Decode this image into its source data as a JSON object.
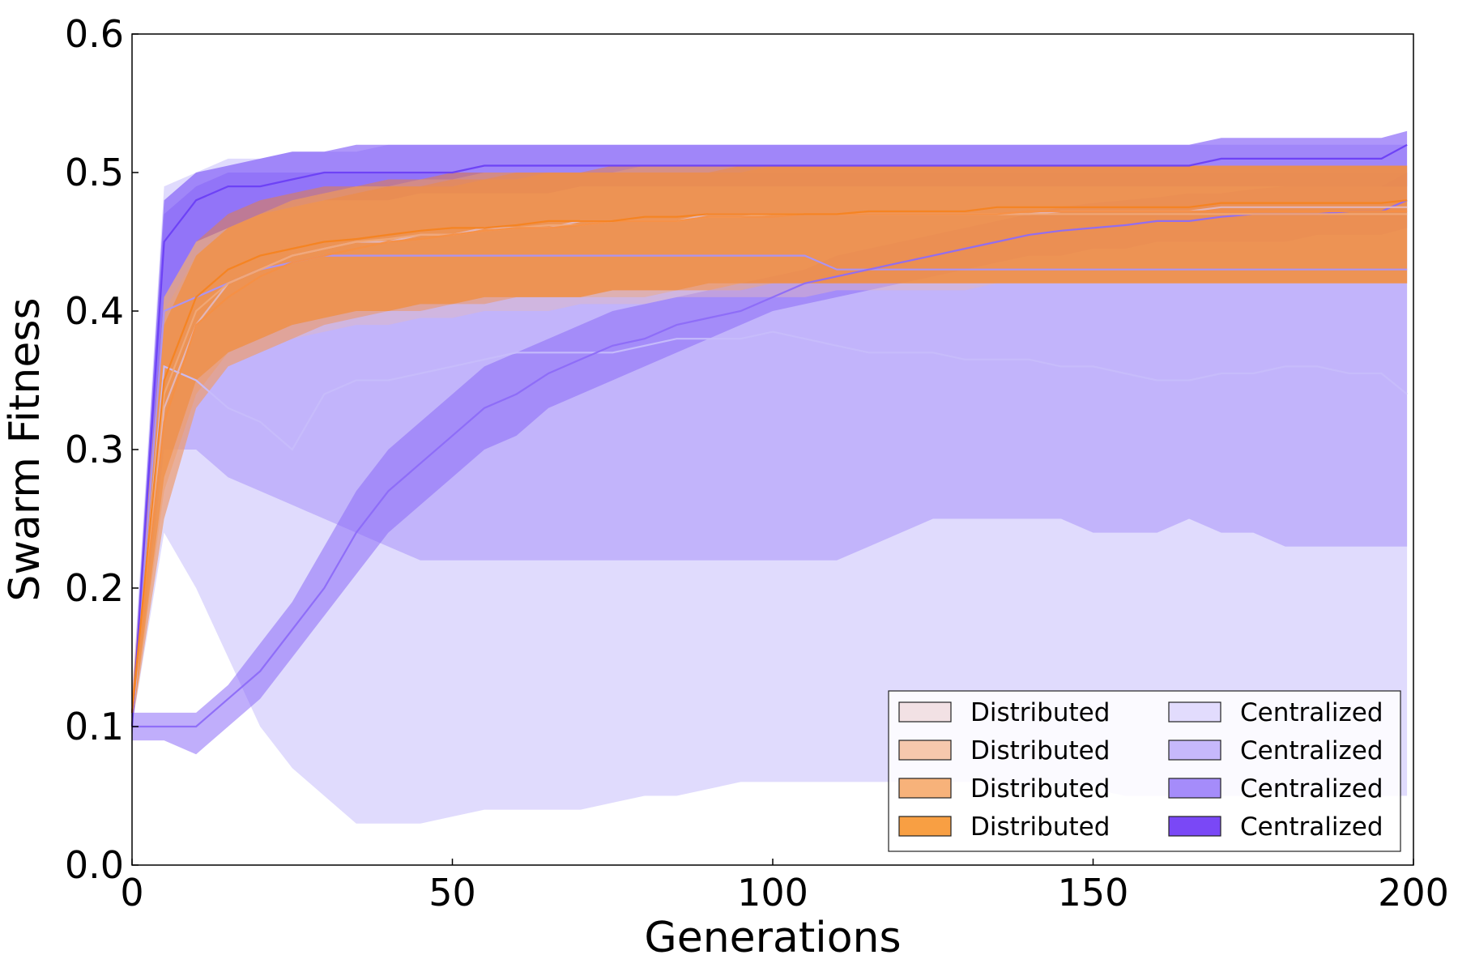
{
  "chart_data": {
    "type": "line",
    "xlabel": "Generations",
    "ylabel": "Swarm Fitness",
    "xlim": [
      0,
      200
    ],
    "ylim": [
      0.0,
      0.6
    ],
    "x_ticks": [
      "0",
      "50",
      "100",
      "150",
      "200"
    ],
    "y_ticks": [
      "0.0",
      "0.1",
      "0.2",
      "0.3",
      "0.4",
      "0.5",
      "0.6"
    ],
    "grid": false,
    "legend_placement": "lower-right",
    "x": [
      0,
      5,
      10,
      15,
      20,
      25,
      30,
      35,
      40,
      45,
      50,
      55,
      60,
      65,
      70,
      75,
      80,
      85,
      90,
      95,
      100,
      105,
      110,
      115,
      120,
      125,
      130,
      135,
      140,
      145,
      150,
      155,
      160,
      165,
      170,
      175,
      180,
      185,
      190,
      195,
      199
    ],
    "series": [
      {
        "name": "Distributed",
        "color": "#e2b7bf",
        "mean": [
          0.11,
          0.33,
          0.39,
          0.42,
          0.43,
          0.44,
          0.445,
          0.45,
          0.45,
          0.455,
          0.455,
          0.46,
          0.46,
          0.46,
          0.465,
          0.465,
          0.465,
          0.465,
          0.47,
          0.47,
          0.47,
          0.47,
          0.47,
          0.47,
          0.47,
          0.47,
          0.47,
          0.47,
          0.47,
          0.472,
          0.472,
          0.472,
          0.472,
          0.472,
          0.475,
          0.475,
          0.475,
          0.475,
          0.475,
          0.475,
          0.475
        ],
        "lower": [
          0.1,
          0.25,
          0.33,
          0.36,
          0.37,
          0.38,
          0.385,
          0.39,
          0.39,
          0.395,
          0.395,
          0.4,
          0.4,
          0.4,
          0.405,
          0.405,
          0.405,
          0.41,
          0.41,
          0.41,
          0.41,
          0.41,
          0.415,
          0.415,
          0.415,
          0.415,
          0.415,
          0.42,
          0.42,
          0.42,
          0.42,
          0.42,
          0.42,
          0.42,
          0.42,
          0.42,
          0.42,
          0.42,
          0.42,
          0.42,
          0.42
        ],
        "upper": [
          0.13,
          0.4,
          0.44,
          0.46,
          0.47,
          0.48,
          0.485,
          0.49,
          0.49,
          0.495,
          0.495,
          0.5,
          0.5,
          0.5,
          0.5,
          0.5,
          0.505,
          0.505,
          0.505,
          0.505,
          0.505,
          0.505,
          0.505,
          0.505,
          0.505,
          0.505,
          0.505,
          0.505,
          0.505,
          0.505,
          0.505,
          0.505,
          0.505,
          0.505,
          0.505,
          0.505,
          0.505,
          0.505,
          0.505,
          0.505,
          0.505
        ]
      },
      {
        "name": "Distributed",
        "color": "#f0a878",
        "mean": [
          0.11,
          0.34,
          0.4,
          0.42,
          0.43,
          0.44,
          0.445,
          0.45,
          0.452,
          0.455,
          0.455,
          0.458,
          0.46,
          0.462,
          0.462,
          0.465,
          0.465,
          0.465,
          0.468,
          0.468,
          0.47,
          0.47,
          0.47,
          0.47,
          0.47,
          0.47,
          0.47,
          0.47,
          0.47,
          0.47,
          0.47,
          0.47,
          0.47,
          0.47,
          0.47,
          0.47,
          0.47,
          0.47,
          0.47,
          0.47,
          0.47
        ],
        "lower": [
          0.1,
          0.27,
          0.34,
          0.37,
          0.38,
          0.39,
          0.395,
          0.4,
          0.4,
          0.405,
          0.405,
          0.41,
          0.41,
          0.41,
          0.41,
          0.41,
          0.41,
          0.415,
          0.415,
          0.415,
          0.42,
          0.42,
          0.42,
          0.42,
          0.42,
          0.42,
          0.42,
          0.42,
          0.42,
          0.42,
          0.42,
          0.42,
          0.42,
          0.42,
          0.42,
          0.42,
          0.42,
          0.42,
          0.42,
          0.42,
          0.42
        ],
        "upper": [
          0.12,
          0.39,
          0.44,
          0.46,
          0.47,
          0.48,
          0.485,
          0.49,
          0.49,
          0.49,
          0.49,
          0.495,
          0.495,
          0.5,
          0.5,
          0.5,
          0.5,
          0.5,
          0.5,
          0.5,
          0.505,
          0.505,
          0.505,
          0.505,
          0.505,
          0.505,
          0.505,
          0.505,
          0.505,
          0.505,
          0.505,
          0.505,
          0.505,
          0.505,
          0.505,
          0.505,
          0.505,
          0.505,
          0.505,
          0.505,
          0.505
        ]
      },
      {
        "name": "Distributed",
        "color": "#f58f45",
        "mean": [
          0.11,
          0.32,
          0.39,
          0.41,
          0.425,
          0.435,
          0.44,
          0.445,
          0.45,
          0.452,
          0.455,
          0.458,
          0.46,
          0.46,
          0.462,
          0.465,
          0.465,
          0.465,
          0.468,
          0.468,
          0.468,
          0.47,
          0.47,
          0.47,
          0.47,
          0.47,
          0.47,
          0.47,
          0.472,
          0.472,
          0.472,
          0.472,
          0.472,
          0.472,
          0.472,
          0.472,
          0.472,
          0.472,
          0.472,
          0.472,
          0.472
        ],
        "lower": [
          0.1,
          0.25,
          0.33,
          0.36,
          0.37,
          0.38,
          0.39,
          0.395,
          0.4,
          0.4,
          0.405,
          0.405,
          0.41,
          0.41,
          0.41,
          0.415,
          0.415,
          0.415,
          0.415,
          0.42,
          0.42,
          0.42,
          0.42,
          0.42,
          0.42,
          0.42,
          0.42,
          0.42,
          0.42,
          0.42,
          0.42,
          0.42,
          0.42,
          0.42,
          0.42,
          0.42,
          0.42,
          0.42,
          0.42,
          0.42,
          0.42
        ],
        "upper": [
          0.12,
          0.39,
          0.44,
          0.46,
          0.47,
          0.475,
          0.48,
          0.485,
          0.49,
          0.49,
          0.495,
          0.495,
          0.5,
          0.5,
          0.5,
          0.5,
          0.5,
          0.5,
          0.5,
          0.505,
          0.505,
          0.505,
          0.505,
          0.505,
          0.505,
          0.505,
          0.505,
          0.505,
          0.505,
          0.505,
          0.505,
          0.505,
          0.505,
          0.505,
          0.505,
          0.505,
          0.505,
          0.505,
          0.505,
          0.505,
          0.505
        ]
      },
      {
        "name": "Distributed",
        "color": "#f58320",
        "mean": [
          0.11,
          0.35,
          0.41,
          0.43,
          0.44,
          0.445,
          0.45,
          0.452,
          0.455,
          0.458,
          0.46,
          0.46,
          0.462,
          0.465,
          0.465,
          0.465,
          0.468,
          0.468,
          0.47,
          0.47,
          0.47,
          0.47,
          0.47,
          0.472,
          0.472,
          0.472,
          0.472,
          0.475,
          0.475,
          0.475,
          0.475,
          0.475,
          0.475,
          0.475,
          0.478,
          0.478,
          0.478,
          0.478,
          0.478,
          0.478,
          0.48
        ],
        "lower": [
          0.1,
          0.28,
          0.35,
          0.37,
          0.38,
          0.39,
          0.395,
          0.4,
          0.4,
          0.405,
          0.405,
          0.41,
          0.41,
          0.41,
          0.41,
          0.415,
          0.415,
          0.415,
          0.42,
          0.42,
          0.42,
          0.42,
          0.42,
          0.42,
          0.42,
          0.42,
          0.42,
          0.42,
          0.42,
          0.42,
          0.42,
          0.42,
          0.42,
          0.42,
          0.42,
          0.42,
          0.42,
          0.42,
          0.42,
          0.42,
          0.42
        ],
        "upper": [
          0.12,
          0.41,
          0.45,
          0.47,
          0.48,
          0.485,
          0.49,
          0.49,
          0.495,
          0.495,
          0.5,
          0.5,
          0.5,
          0.5,
          0.5,
          0.505,
          0.505,
          0.505,
          0.505,
          0.505,
          0.505,
          0.505,
          0.505,
          0.505,
          0.505,
          0.505,
          0.505,
          0.505,
          0.505,
          0.505,
          0.505,
          0.505,
          0.505,
          0.505,
          0.505,
          0.505,
          0.505,
          0.505,
          0.505,
          0.505,
          0.505
        ]
      },
      {
        "name": "Centralized",
        "color": "#c7bdfb",
        "mean": [
          0.1,
          0.36,
          0.35,
          0.33,
          0.32,
          0.3,
          0.34,
          0.35,
          0.35,
          0.355,
          0.36,
          0.365,
          0.37,
          0.37,
          0.37,
          0.37,
          0.375,
          0.38,
          0.38,
          0.38,
          0.385,
          0.38,
          0.375,
          0.37,
          0.37,
          0.37,
          0.365,
          0.365,
          0.365,
          0.36,
          0.36,
          0.355,
          0.35,
          0.35,
          0.355,
          0.355,
          0.36,
          0.36,
          0.355,
          0.355,
          0.34
        ],
        "lower": [
          0.1,
          0.24,
          0.2,
          0.15,
          0.1,
          0.07,
          0.05,
          0.03,
          0.03,
          0.03,
          0.035,
          0.04,
          0.04,
          0.04,
          0.04,
          0.045,
          0.05,
          0.05,
          0.055,
          0.06,
          0.06,
          0.06,
          0.06,
          0.06,
          0.06,
          0.06,
          0.06,
          0.06,
          0.055,
          0.055,
          0.055,
          0.05,
          0.05,
          0.05,
          0.05,
          0.05,
          0.05,
          0.05,
          0.05,
          0.05,
          0.05
        ],
        "upper": [
          0.12,
          0.49,
          0.5,
          0.51,
          0.51,
          0.515,
          0.515,
          0.515,
          0.52,
          0.52,
          0.52,
          0.52,
          0.52,
          0.52,
          0.52,
          0.52,
          0.52,
          0.52,
          0.52,
          0.52,
          0.52,
          0.52,
          0.52,
          0.52,
          0.52,
          0.52,
          0.52,
          0.52,
          0.52,
          0.52,
          0.52,
          0.52,
          0.52,
          0.52,
          0.52,
          0.52,
          0.52,
          0.52,
          0.52,
          0.52,
          0.52
        ]
      },
      {
        "name": "Centralized",
        "color": "#a994fa",
        "mean": [
          0.1,
          0.4,
          0.41,
          0.42,
          0.43,
          0.435,
          0.44,
          0.44,
          0.44,
          0.44,
          0.44,
          0.44,
          0.44,
          0.44,
          0.44,
          0.44,
          0.44,
          0.44,
          0.44,
          0.44,
          0.44,
          0.44,
          0.43,
          0.43,
          0.43,
          0.43,
          0.43,
          0.43,
          0.43,
          0.43,
          0.43,
          0.43,
          0.43,
          0.43,
          0.43,
          0.43,
          0.43,
          0.43,
          0.43,
          0.43,
          0.43
        ],
        "lower": [
          0.1,
          0.3,
          0.3,
          0.28,
          0.27,
          0.26,
          0.25,
          0.24,
          0.23,
          0.22,
          0.22,
          0.22,
          0.22,
          0.22,
          0.22,
          0.22,
          0.22,
          0.22,
          0.22,
          0.22,
          0.22,
          0.22,
          0.22,
          0.23,
          0.24,
          0.25,
          0.25,
          0.25,
          0.25,
          0.25,
          0.24,
          0.24,
          0.24,
          0.25,
          0.24,
          0.24,
          0.23,
          0.23,
          0.23,
          0.23,
          0.23
        ],
        "upper": [
          0.12,
          0.47,
          0.49,
          0.5,
          0.5,
          0.5,
          0.5,
          0.5,
          0.5,
          0.5,
          0.5,
          0.5,
          0.5,
          0.5,
          0.5,
          0.5,
          0.5,
          0.5,
          0.5,
          0.5,
          0.5,
          0.5,
          0.5,
          0.5,
          0.5,
          0.5,
          0.5,
          0.5,
          0.5,
          0.5,
          0.5,
          0.5,
          0.5,
          0.5,
          0.5,
          0.5,
          0.5,
          0.5,
          0.5,
          0.5,
          0.5
        ]
      },
      {
        "name": "Centralized",
        "color": "#8d6cf8",
        "mean": [
          0.1,
          0.1,
          0.1,
          0.12,
          0.14,
          0.17,
          0.2,
          0.24,
          0.27,
          0.29,
          0.31,
          0.33,
          0.34,
          0.355,
          0.365,
          0.375,
          0.38,
          0.39,
          0.395,
          0.4,
          0.41,
          0.42,
          0.425,
          0.43,
          0.435,
          0.44,
          0.445,
          0.45,
          0.455,
          0.458,
          0.46,
          0.462,
          0.465,
          0.465,
          0.468,
          0.47,
          0.47,
          0.47,
          0.472,
          0.472,
          0.48
        ],
        "lower": [
          0.09,
          0.09,
          0.08,
          0.1,
          0.12,
          0.15,
          0.18,
          0.21,
          0.24,
          0.26,
          0.28,
          0.3,
          0.31,
          0.33,
          0.34,
          0.35,
          0.36,
          0.37,
          0.38,
          0.39,
          0.4,
          0.405,
          0.41,
          0.415,
          0.42,
          0.425,
          0.43,
          0.435,
          0.44,
          0.44,
          0.445,
          0.445,
          0.45,
          0.45,
          0.45,
          0.45,
          0.45,
          0.455,
          0.455,
          0.455,
          0.46
        ],
        "upper": [
          0.11,
          0.11,
          0.11,
          0.13,
          0.16,
          0.19,
          0.23,
          0.27,
          0.3,
          0.32,
          0.34,
          0.36,
          0.37,
          0.38,
          0.39,
          0.4,
          0.405,
          0.41,
          0.415,
          0.42,
          0.425,
          0.43,
          0.44,
          0.445,
          0.45,
          0.455,
          0.46,
          0.465,
          0.47,
          0.475,
          0.478,
          0.48,
          0.482,
          0.485,
          0.485,
          0.488,
          0.49,
          0.49,
          0.49,
          0.49,
          0.5
        ]
      },
      {
        "name": "Centralized",
        "color": "#6b3ff5",
        "mean": [
          0.1,
          0.45,
          0.48,
          0.49,
          0.49,
          0.495,
          0.5,
          0.5,
          0.5,
          0.5,
          0.5,
          0.505,
          0.505,
          0.505,
          0.505,
          0.505,
          0.505,
          0.505,
          0.505,
          0.505,
          0.505,
          0.505,
          0.505,
          0.505,
          0.505,
          0.505,
          0.505,
          0.505,
          0.505,
          0.505,
          0.505,
          0.505,
          0.505,
          0.505,
          0.51,
          0.51,
          0.51,
          0.51,
          0.51,
          0.51,
          0.52
        ],
        "lower": [
          0.09,
          0.41,
          0.45,
          0.46,
          0.47,
          0.475,
          0.48,
          0.48,
          0.48,
          0.485,
          0.485,
          0.485,
          0.485,
          0.485,
          0.49,
          0.49,
          0.49,
          0.49,
          0.49,
          0.49,
          0.49,
          0.49,
          0.49,
          0.49,
          0.49,
          0.49,
          0.49,
          0.49,
          0.49,
          0.49,
          0.49,
          0.49,
          0.49,
          0.49,
          0.49,
          0.49,
          0.49,
          0.49,
          0.49,
          0.49,
          0.49
        ],
        "upper": [
          0.11,
          0.48,
          0.5,
          0.505,
          0.51,
          0.515,
          0.515,
          0.52,
          0.52,
          0.52,
          0.52,
          0.52,
          0.52,
          0.52,
          0.52,
          0.52,
          0.52,
          0.52,
          0.52,
          0.52,
          0.52,
          0.52,
          0.52,
          0.52,
          0.52,
          0.52,
          0.52,
          0.52,
          0.52,
          0.52,
          0.52,
          0.52,
          0.52,
          0.52,
          0.525,
          0.525,
          0.525,
          0.525,
          0.525,
          0.525,
          0.53
        ]
      }
    ],
    "legend": [
      {
        "label": "Distributed",
        "color": "#f2e1e4"
      },
      {
        "label": "Centralized",
        "color": "#e2dcfd"
      },
      {
        "label": "Distributed",
        "color": "#f6c8ad"
      },
      {
        "label": "Centralized",
        "color": "#c6b8fb"
      },
      {
        "label": "Distributed",
        "color": "#f7b27a"
      },
      {
        "label": "Centralized",
        "color": "#a58cfa"
      },
      {
        "label": "Distributed",
        "color": "#f89f43"
      },
      {
        "label": "Centralized",
        "color": "#7a48f6"
      }
    ]
  }
}
